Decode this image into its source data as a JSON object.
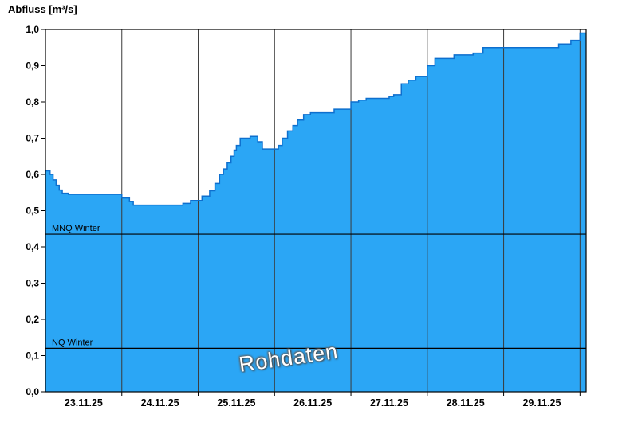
{
  "title": "Abfluss [m³/s]",
  "watermark": "Rohdaten",
  "chart_data": {
    "type": "area",
    "title": "Abfluss [m³/s]",
    "xlabel": "",
    "ylabel": "Abfluss [m³/s]",
    "x_unit": "days (t=0 is 22.11.25 12:00)",
    "x_domain": [
      0,
      7.08
    ],
    "ylim": [
      0,
      1.0
    ],
    "grid": "vertical-only",
    "y_ticks": [
      {
        "v": 0.0,
        "label": "0,0"
      },
      {
        "v": 0.1,
        "label": "0,1"
      },
      {
        "v": 0.2,
        "label": "0,2"
      },
      {
        "v": 0.3,
        "label": "0,3"
      },
      {
        "v": 0.4,
        "label": "0,4"
      },
      {
        "v": 0.5,
        "label": "0,5"
      },
      {
        "v": 0.6,
        "label": "0,6"
      },
      {
        "v": 0.7,
        "label": "0,7"
      },
      {
        "v": 0.8,
        "label": "0,8"
      },
      {
        "v": 0.9,
        "label": "0,9"
      },
      {
        "v": 1.0,
        "label": "1,0"
      }
    ],
    "x_ticks": [
      {
        "t": 0.5,
        "label": "23.11.25"
      },
      {
        "t": 1.5,
        "label": "24.11.25"
      },
      {
        "t": 2.5,
        "label": "25.11.25"
      },
      {
        "t": 3.5,
        "label": "26.11.25"
      },
      {
        "t": 4.5,
        "label": "27.11.25"
      },
      {
        "t": 5.5,
        "label": "28.11.25"
      },
      {
        "t": 6.5,
        "label": "29.11.25"
      }
    ],
    "gridlines_t": [
      1,
      2,
      3,
      4,
      5,
      6,
      7
    ],
    "reference_lines": [
      {
        "label": "MNQ Winter",
        "value": 0.435
      },
      {
        "label": "NQ Winter",
        "value": 0.12
      }
    ],
    "series": {
      "name": "Abfluss Rohdaten",
      "step_points": [
        [
          0.0,
          0.61
        ],
        [
          0.06,
          0.6
        ],
        [
          0.1,
          0.585
        ],
        [
          0.14,
          0.57
        ],
        [
          0.18,
          0.557
        ],
        [
          0.22,
          0.548
        ],
        [
          0.3,
          0.545
        ],
        [
          1.0,
          0.535
        ],
        [
          1.1,
          0.525
        ],
        [
          1.15,
          0.515
        ],
        [
          1.8,
          0.52
        ],
        [
          1.9,
          0.528
        ],
        [
          2.05,
          0.54
        ],
        [
          2.15,
          0.555
        ],
        [
          2.22,
          0.575
        ],
        [
          2.28,
          0.6
        ],
        [
          2.33,
          0.615
        ],
        [
          2.38,
          0.632
        ],
        [
          2.43,
          0.65
        ],
        [
          2.47,
          0.667
        ],
        [
          2.5,
          0.68
        ],
        [
          2.55,
          0.7
        ],
        [
          2.68,
          0.705
        ],
        [
          2.78,
          0.69
        ],
        [
          2.84,
          0.67
        ],
        [
          3.05,
          0.68
        ],
        [
          3.1,
          0.7
        ],
        [
          3.17,
          0.72
        ],
        [
          3.24,
          0.735
        ],
        [
          3.3,
          0.75
        ],
        [
          3.38,
          0.765
        ],
        [
          3.47,
          0.77
        ],
        [
          3.78,
          0.78
        ],
        [
          4.0,
          0.8
        ],
        [
          4.1,
          0.805
        ],
        [
          4.2,
          0.81
        ],
        [
          4.5,
          0.815
        ],
        [
          4.56,
          0.82
        ],
        [
          4.66,
          0.85
        ],
        [
          4.75,
          0.86
        ],
        [
          4.85,
          0.87
        ],
        [
          5.0,
          0.9
        ],
        [
          5.1,
          0.92
        ],
        [
          5.35,
          0.93
        ],
        [
          5.6,
          0.935
        ],
        [
          5.73,
          0.95
        ],
        [
          6.72,
          0.96
        ],
        [
          6.88,
          0.97
        ],
        [
          7.0,
          0.99
        ]
      ]
    },
    "colors": {
      "fill": "#2BA6F5",
      "stroke": "#0E6FCE",
      "axis": "#000000",
      "gridline": "#3A3A3A",
      "reference": "#000000"
    }
  }
}
